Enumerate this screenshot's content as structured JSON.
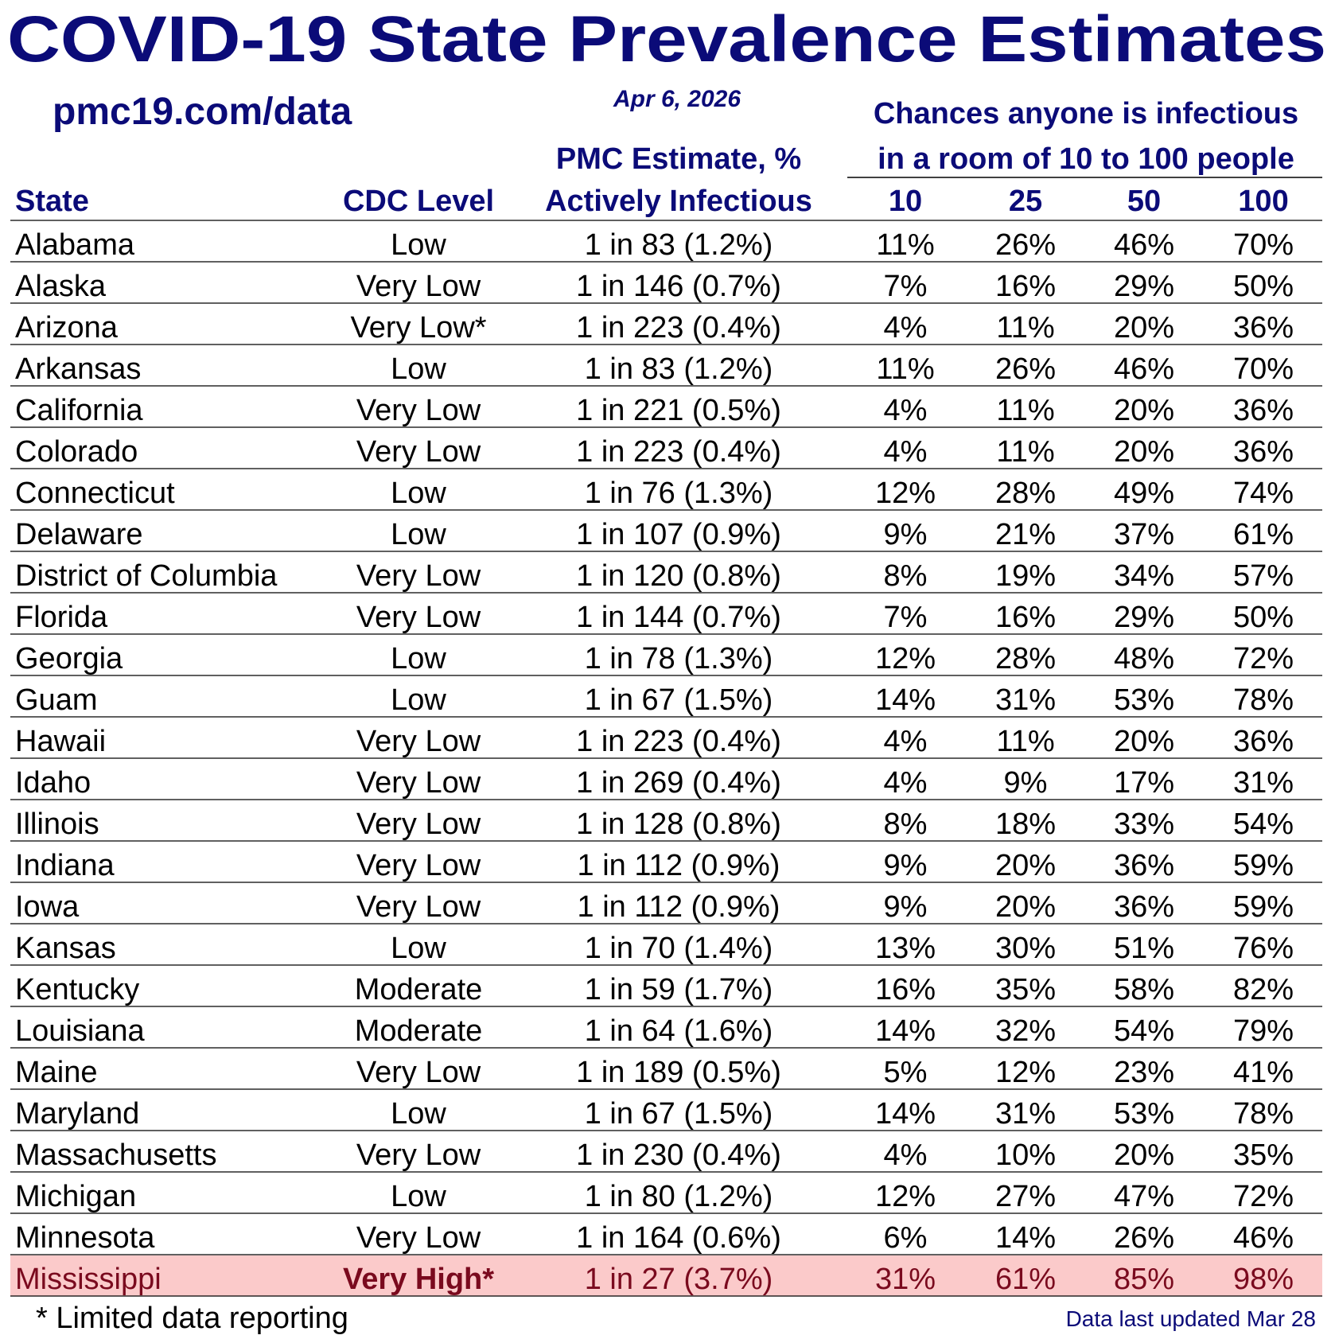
{
  "header": {
    "title": "COVID-19 State Prevalence Estimates",
    "source": "pmc19.com/data",
    "date": "Apr 6, 2026",
    "chances_title": [
      "Chances anyone is infectious",
      "in a room of 10 to 100 people"
    ]
  },
  "table": {
    "columns": {
      "state": "State",
      "cdc_level": "CDC Level",
      "estimate": [
        "PMC Estimate, %",
        "Actively Infectious"
      ],
      "room_sizes": [
        "10",
        "25",
        "50",
        "100"
      ]
    },
    "rows": [
      {
        "state": "Alabama",
        "cdc_level": "Low",
        "estimate": "1 in 83 (1.2%)",
        "chances": [
          "11%",
          "26%",
          "46%",
          "70%"
        ]
      },
      {
        "state": "Alaska",
        "cdc_level": "Very Low",
        "estimate": "1 in 146 (0.7%)",
        "chances": [
          "7%",
          "16%",
          "29%",
          "50%"
        ]
      },
      {
        "state": "Arizona",
        "cdc_level": "Very Low*",
        "estimate": "1 in 223 (0.4%)",
        "chances": [
          "4%",
          "11%",
          "20%",
          "36%"
        ]
      },
      {
        "state": "Arkansas",
        "cdc_level": "Low",
        "estimate": "1 in 83 (1.2%)",
        "chances": [
          "11%",
          "26%",
          "46%",
          "70%"
        ]
      },
      {
        "state": "California",
        "cdc_level": "Very Low",
        "estimate": "1 in 221 (0.5%)",
        "chances": [
          "4%",
          "11%",
          "20%",
          "36%"
        ]
      },
      {
        "state": "Colorado",
        "cdc_level": "Very Low",
        "estimate": "1 in 223 (0.4%)",
        "chances": [
          "4%",
          "11%",
          "20%",
          "36%"
        ]
      },
      {
        "state": "Connecticut",
        "cdc_level": "Low",
        "estimate": "1 in 76 (1.3%)",
        "chances": [
          "12%",
          "28%",
          "49%",
          "74%"
        ]
      },
      {
        "state": "Delaware",
        "cdc_level": "Low",
        "estimate": "1 in 107 (0.9%)",
        "chances": [
          "9%",
          "21%",
          "37%",
          "61%"
        ]
      },
      {
        "state": "District of Columbia",
        "cdc_level": "Very Low",
        "estimate": "1 in 120 (0.8%)",
        "chances": [
          "8%",
          "19%",
          "34%",
          "57%"
        ]
      },
      {
        "state": "Florida",
        "cdc_level": "Very Low",
        "estimate": "1 in 144 (0.7%)",
        "chances": [
          "7%",
          "16%",
          "29%",
          "50%"
        ]
      },
      {
        "state": "Georgia",
        "cdc_level": "Low",
        "estimate": "1 in 78 (1.3%)",
        "chances": [
          "12%",
          "28%",
          "48%",
          "72%"
        ]
      },
      {
        "state": "Guam",
        "cdc_level": "Low",
        "estimate": "1 in 67 (1.5%)",
        "chances": [
          "14%",
          "31%",
          "53%",
          "78%"
        ]
      },
      {
        "state": "Hawaii",
        "cdc_level": "Very Low",
        "estimate": "1 in 223 (0.4%)",
        "chances": [
          "4%",
          "11%",
          "20%",
          "36%"
        ]
      },
      {
        "state": "Idaho",
        "cdc_level": "Very Low",
        "estimate": "1 in 269 (0.4%)",
        "chances": [
          "4%",
          "9%",
          "17%",
          "31%"
        ]
      },
      {
        "state": "Illinois",
        "cdc_level": "Very Low",
        "estimate": "1 in 128 (0.8%)",
        "chances": [
          "8%",
          "18%",
          "33%",
          "54%"
        ]
      },
      {
        "state": "Indiana",
        "cdc_level": "Very Low",
        "estimate": "1 in 112 (0.9%)",
        "chances": [
          "9%",
          "20%",
          "36%",
          "59%"
        ]
      },
      {
        "state": "Iowa",
        "cdc_level": "Very Low",
        "estimate": "1 in 112 (0.9%)",
        "chances": [
          "9%",
          "20%",
          "36%",
          "59%"
        ]
      },
      {
        "state": "Kansas",
        "cdc_level": "Low",
        "estimate": "1 in 70 (1.4%)",
        "chances": [
          "13%",
          "30%",
          "51%",
          "76%"
        ]
      },
      {
        "state": "Kentucky",
        "cdc_level": "Moderate",
        "estimate": "1 in 59 (1.7%)",
        "chances": [
          "16%",
          "35%",
          "58%",
          "82%"
        ]
      },
      {
        "state": "Louisiana",
        "cdc_level": "Moderate",
        "estimate": "1 in 64 (1.6%)",
        "chances": [
          "14%",
          "32%",
          "54%",
          "79%"
        ]
      },
      {
        "state": "Maine",
        "cdc_level": "Very Low",
        "estimate": "1 in 189 (0.5%)",
        "chances": [
          "5%",
          "12%",
          "23%",
          "41%"
        ]
      },
      {
        "state": "Maryland",
        "cdc_level": "Low",
        "estimate": "1 in 67 (1.5%)",
        "chances": [
          "14%",
          "31%",
          "53%",
          "78%"
        ]
      },
      {
        "state": "Massachusetts",
        "cdc_level": "Very Low",
        "estimate": "1 in 230 (0.4%)",
        "chances": [
          "4%",
          "10%",
          "20%",
          "35%"
        ]
      },
      {
        "state": "Michigan",
        "cdc_level": "Low",
        "estimate": "1 in 80 (1.2%)",
        "chances": [
          "12%",
          "27%",
          "47%",
          "72%"
        ]
      },
      {
        "state": "Minnesota",
        "cdc_level": "Very Low",
        "estimate": "1 in 164 (0.6%)",
        "chances": [
          "6%",
          "14%",
          "26%",
          "46%"
        ]
      },
      {
        "state": "Mississippi",
        "cdc_level": "Very High*",
        "estimate": "1 in 27 (3.7%)",
        "chances": [
          "31%",
          "61%",
          "85%",
          "98%"
        ],
        "highlight": true
      }
    ]
  },
  "footer": {
    "note": "* Limited data reporting",
    "updated": "Data last updated Mar 28"
  }
}
